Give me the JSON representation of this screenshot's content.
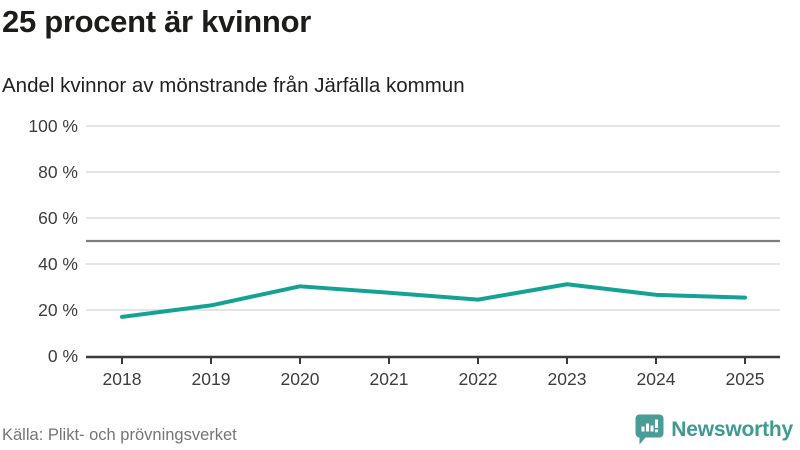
{
  "header": {
    "title": "25 procent är kvinnor",
    "subtitle": "Andel kvinnor av mönstrande från Järfälla kommun"
  },
  "chart_data": {
    "type": "line",
    "title": "25 procent är kvinnor",
    "subtitle": "Andel kvinnor av mönstrande från Järfälla kommun",
    "x": [
      2018,
      2019,
      2020,
      2021,
      2022,
      2023,
      2024,
      2025
    ],
    "series": [
      {
        "name": "Andel kvinnor av mönstrande",
        "values": [
          17,
          22,
          30.3,
          27.5,
          24.5,
          31.2,
          26.6,
          25.4
        ]
      }
    ],
    "ylim": [
      0,
      100
    ],
    "yticks": [
      0,
      20,
      40,
      60,
      80,
      100
    ],
    "ytick_labels": [
      "0 %",
      "20 %",
      "40 %",
      "60 %",
      "80 %",
      "100 %"
    ],
    "reference_line": 50,
    "grid": true,
    "legend_position": "none",
    "line_color": "#14a295",
    "reference_line_color": "#7d7d7d",
    "gridline_color": "#e4e4e4",
    "axis_color": "#3a3a3a",
    "tick_label_color": "#3d3d3d"
  },
  "footer": {
    "source": "Källa: Plikt- och prövningsverket",
    "brand": {
      "name": "Newsworthy",
      "color": "#3e9a92",
      "icon": "newsworthy-speech-bubble-barchart-icon"
    }
  }
}
